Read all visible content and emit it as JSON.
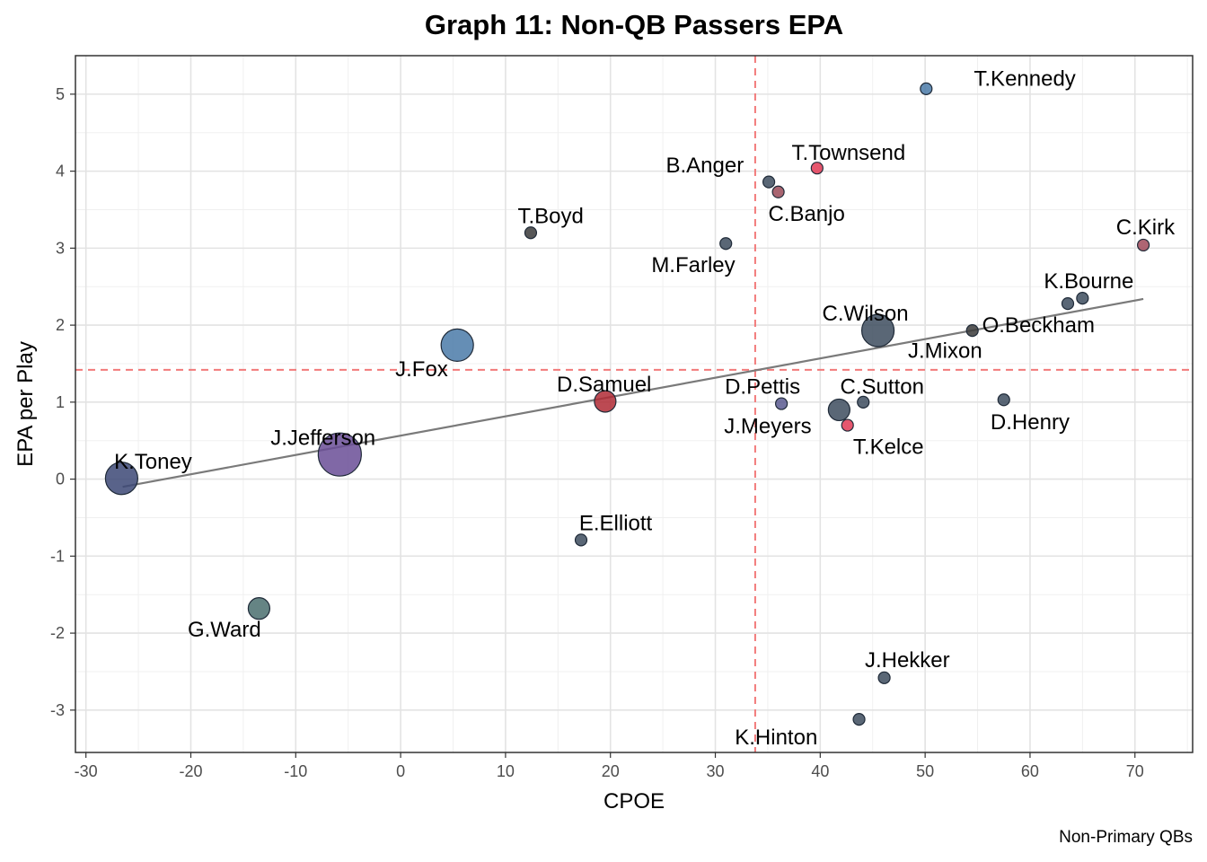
{
  "chart_data": {
    "type": "scatter",
    "title": "Graph 11: Non-QB Passers EPA",
    "xlabel": "CPOE",
    "ylabel": "EPA per Play",
    "caption": "Non-Primary QBs",
    "xlim": [
      -31,
      75.5
    ],
    "ylim": [
      -3.55,
      5.5
    ],
    "xticks": [
      -30,
      -20,
      -10,
      0,
      10,
      20,
      30,
      40,
      50,
      60,
      70
    ],
    "yticks": [
      -3,
      -2,
      -1,
      0,
      1,
      2,
      3,
      4,
      5
    ],
    "grid": true,
    "vline_x": 33.8,
    "hline_y": 1.42,
    "trendline": {
      "x": [
        -26.5,
        70.8
      ],
      "y": [
        -0.1,
        2.34
      ]
    },
    "points": [
      {
        "name": "T.Kennedy",
        "x": 50.1,
        "y": 5.07,
        "size": 1,
        "color": "#4a7aa8"
      },
      {
        "name": "T.Townsend",
        "x": 39.7,
        "y": 4.04,
        "size": 1,
        "color": "#e23a55"
      },
      {
        "name": "B.Anger",
        "x": 35.1,
        "y": 3.86,
        "size": 1,
        "color": "#3d4c5e"
      },
      {
        "name": "C.Banjo",
        "x": 36.0,
        "y": 3.73,
        "size": 1,
        "color": "#9a4a58"
      },
      {
        "name": "T.Boyd",
        "x": 12.4,
        "y": 3.2,
        "size": 1,
        "color": "#3a3a3a"
      },
      {
        "name": "M.Farley",
        "x": 31.0,
        "y": 3.06,
        "size": 1,
        "color": "#3d4c5e"
      },
      {
        "name": "C.Kirk",
        "x": 70.8,
        "y": 3.04,
        "size": 1,
        "color": "#a04a5a"
      },
      {
        "name": "K.Bourne",
        "x": 63.6,
        "y": 2.28,
        "size": 1,
        "color": "#3d4c5e"
      },
      {
        "name": "K.Bourne",
        "x": 65.0,
        "y": 2.35,
        "size": 1,
        "color": "#3d4c5e"
      },
      {
        "name": "C.Wilson",
        "x": 45.5,
        "y": 1.93,
        "size": 4,
        "color": "#3d4c5e"
      },
      {
        "name": "O.Beckham",
        "x": 54.5,
        "y": 1.93,
        "size": 1,
        "color": "#3a3a3a"
      },
      {
        "name": "J.Fox",
        "x": 5.4,
        "y": 1.74,
        "size": 4,
        "color": "#4a7aa8"
      },
      {
        "name": "D.Samuel",
        "x": 19.5,
        "y": 1.01,
        "size": 2,
        "color": "#b02a35"
      },
      {
        "name": "D.Pettis",
        "x": 36.3,
        "y": 0.98,
        "size": 1,
        "color": "#5a5a90"
      },
      {
        "name": "C.Sutton",
        "x": 44.1,
        "y": 1.0,
        "size": 1,
        "color": "#3d4c5e"
      },
      {
        "name": "D.Henry",
        "x": 57.5,
        "y": 1.03,
        "size": 1,
        "color": "#3d4c5e"
      },
      {
        "name": "J.Meyers",
        "x": 41.8,
        "y": 0.9,
        "size": 2,
        "color": "#3d4c5e"
      },
      {
        "name": "T.Kelce",
        "x": 42.6,
        "y": 0.7,
        "size": 1,
        "color": "#e23a55"
      },
      {
        "name": "J.Jefferson",
        "x": -5.8,
        "y": 0.32,
        "size": 6,
        "color": "#6a4e96"
      },
      {
        "name": "K.Toney",
        "x": -26.6,
        "y": 0.01,
        "size": 4,
        "color": "#3c4876"
      },
      {
        "name": "E.Elliott",
        "x": 17.2,
        "y": -0.79,
        "size": 1,
        "color": "#3d4c5e"
      },
      {
        "name": "G.Ward",
        "x": -13.5,
        "y": -1.68,
        "size": 2,
        "color": "#4a6e6e"
      },
      {
        "name": "J.Hekker",
        "x": 46.1,
        "y": -2.58,
        "size": 1,
        "color": "#3d4c5e"
      },
      {
        "name": "K.Hinton",
        "x": 43.7,
        "y": -3.12,
        "size": 1,
        "color": "#3d4c5e"
      }
    ],
    "labels": [
      {
        "text": "T.Kennedy",
        "x": 59.5,
        "y": 5.2
      },
      {
        "text": "T.Townsend",
        "x": 42.7,
        "y": 4.24
      },
      {
        "text": "B.Anger",
        "x": 29.0,
        "y": 4.08
      },
      {
        "text": "C.Banjo",
        "x": 38.7,
        "y": 3.45
      },
      {
        "text": "T.Boyd",
        "x": 14.3,
        "y": 3.42
      },
      {
        "text": "M.Farley",
        "x": 27.9,
        "y": 2.78
      },
      {
        "text": "C.Kirk",
        "x": 71.0,
        "y": 3.27
      },
      {
        "text": "K.Bourne",
        "x": 65.6,
        "y": 2.57
      },
      {
        "text": "C.Wilson",
        "x": 44.3,
        "y": 2.15
      },
      {
        "text": "O.Beckham",
        "x": 60.8,
        "y": 2.0
      },
      {
        "text": "J.Mixon",
        "x": 51.9,
        "y": 1.67
      },
      {
        "text": "J.Fox",
        "x": 2.0,
        "y": 1.43
      },
      {
        "text": "D.Samuel",
        "x": 19.4,
        "y": 1.23
      },
      {
        "text": "D.Pettis",
        "x": 34.5,
        "y": 1.2
      },
      {
        "text": "C.Sutton",
        "x": 45.9,
        "y": 1.2
      },
      {
        "text": "D.Henry",
        "x": 60.0,
        "y": 0.74
      },
      {
        "text": "J.Meyers",
        "x": 35.0,
        "y": 0.69
      },
      {
        "text": "T.Kelce",
        "x": 46.5,
        "y": 0.42
      },
      {
        "text": "J.Jefferson",
        "x": -7.4,
        "y": 0.54
      },
      {
        "text": "K.Toney",
        "x": -23.6,
        "y": 0.23
      },
      {
        "text": "E.Elliott",
        "x": 20.5,
        "y": -0.57
      },
      {
        "text": "G.Ward",
        "x": -16.8,
        "y": -1.95
      },
      {
        "text": "J.Hekker",
        "x": 48.3,
        "y": -2.35
      },
      {
        "text": "K.Hinton",
        "x": 35.8,
        "y": -3.35
      }
    ]
  }
}
